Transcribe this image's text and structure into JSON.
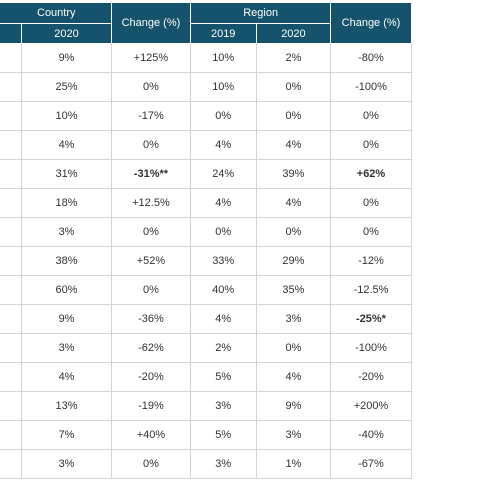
{
  "header": {
    "country_label": "Country",
    "region_label": "Region",
    "change_label": "Change (%)",
    "sub": {
      "country_2020": "2020",
      "region_2019": "2019",
      "region_2020": "2020"
    }
  },
  "rows": [
    {
      "c2020": "9%",
      "cchg": "+125%",
      "r2019": "10%",
      "r2020": "2%",
      "rchg": "-80%"
    },
    {
      "c2020": "25%",
      "cchg": "0%",
      "r2019": "10%",
      "r2020": "0%",
      "rchg": "-100%"
    },
    {
      "c2020": "10%",
      "cchg": "-17%",
      "r2019": "0%",
      "r2020": "0%",
      "rchg": "0%"
    },
    {
      "c2020": "4%",
      "cchg": "0%",
      "r2019": "4%",
      "r2020": "4%",
      "rchg": "0%"
    },
    {
      "c2020": "31%",
      "cchg": "-31%**",
      "r2019": "24%",
      "r2020": "39%",
      "rchg": "+62%"
    },
    {
      "c2020": "18%",
      "cchg": "+12.5%",
      "r2019": "4%",
      "r2020": "4%",
      "rchg": "0%"
    },
    {
      "c2020": "3%",
      "cchg": "0%",
      "r2019": "0%",
      "r2020": "0%",
      "rchg": "0%"
    },
    {
      "c2020": "38%",
      "cchg": "+52%",
      "r2019": "33%",
      "r2020": "29%",
      "rchg": "-12%"
    },
    {
      "c2020": "60%",
      "cchg": "0%",
      "r2019": "40%",
      "r2020": "35%",
      "rchg": "-12.5%"
    },
    {
      "c2020": "9%",
      "cchg": "-36%",
      "r2019": "4%",
      "r2020": "3%",
      "rchg": "-25%*"
    },
    {
      "c2020": "3%",
      "cchg": "-62%",
      "r2019": "2%",
      "r2020": "0%",
      "rchg": "-100%"
    },
    {
      "c2020": "4%",
      "cchg": "-20%",
      "r2019": "5%",
      "r2020": "4%",
      "rchg": "-20%"
    },
    {
      "c2020": "13%",
      "cchg": "-19%",
      "r2019": "3%",
      "r2020": "9%",
      "rchg": "+200%"
    },
    {
      "c2020": "7%",
      "cchg": "+40%",
      "r2019": "5%",
      "r2020": "3%",
      "rchg": "-40%"
    },
    {
      "c2020": "3%",
      "cchg": "0%",
      "r2019": "3%",
      "r2020": "1%",
      "rchg": "-67%"
    }
  ]
}
